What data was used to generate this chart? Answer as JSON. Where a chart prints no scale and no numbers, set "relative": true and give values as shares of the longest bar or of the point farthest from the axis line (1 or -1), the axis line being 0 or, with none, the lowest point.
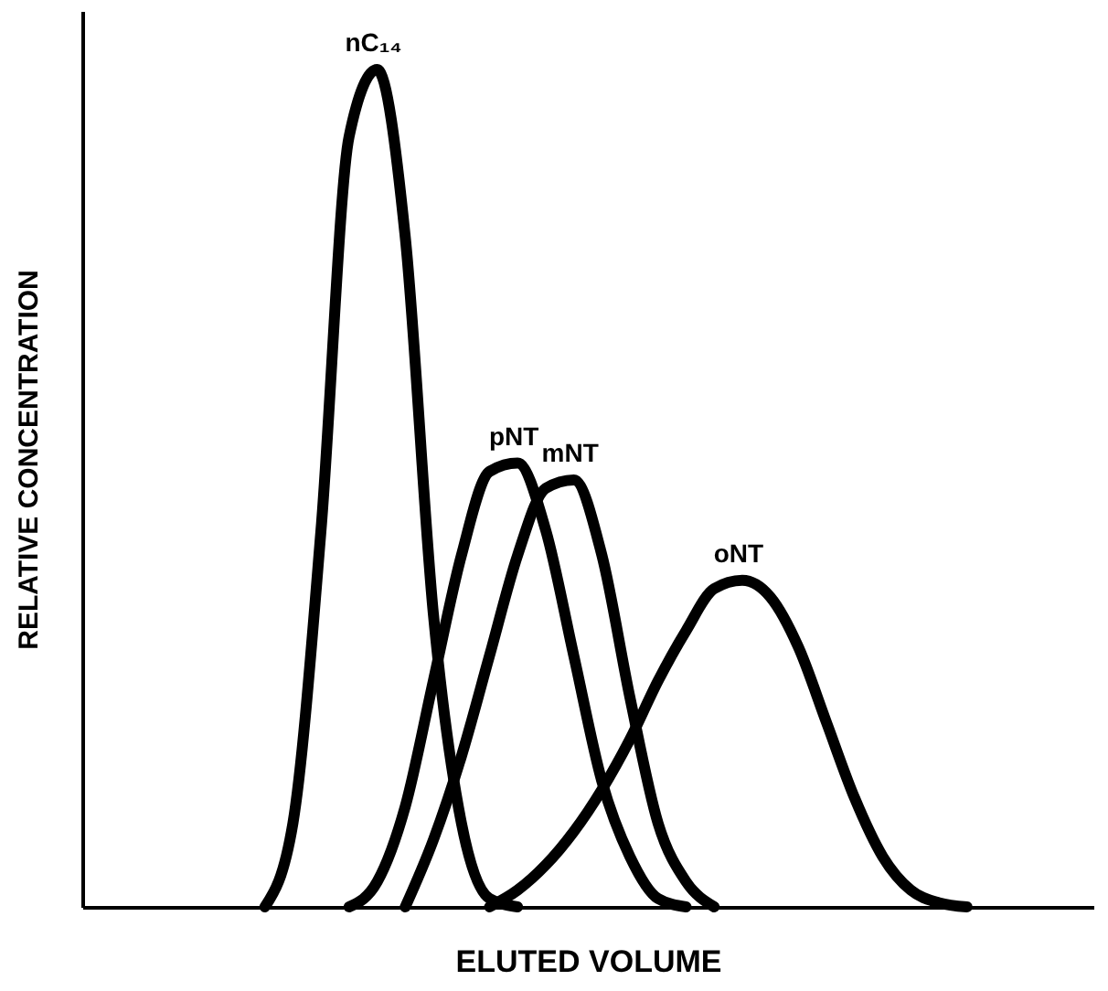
{
  "chart_data": {
    "type": "line",
    "relative": true,
    "xlabel": "ELUTED VOLUME",
    "ylabel": "RELATIVE CONCENTRATION",
    "categories": [
      null,
      null,
      null,
      null,
      null,
      null,
      null,
      null,
      null,
      null,
      null,
      null,
      null,
      null,
      null,
      null,
      null,
      null,
      null,
      null,
      null,
      null,
      null,
      null,
      null,
      null,
      null,
      null,
      null,
      null,
      null,
      null,
      null,
      null,
      null,
      null
    ],
    "series": [
      {
        "name": "nC₁₄",
        "color": "#000000",
        "values": [
          null,
          null,
          null,
          null,
          null,
          null,
          0,
          0.1,
          0.45,
          0.92,
          1.0,
          0.8,
          0.35,
          0.1,
          0.01,
          0,
          null,
          null,
          null,
          null,
          null,
          null,
          null,
          null,
          null,
          null,
          null,
          null,
          null,
          null,
          null,
          null,
          null,
          null,
          null,
          null
        ]
      },
      {
        "name": "pNT",
        "color": "#000000",
        "values": [
          null,
          null,
          null,
          null,
          null,
          null,
          null,
          null,
          null,
          0,
          0.03,
          0.12,
          0.27,
          0.42,
          0.52,
          0.53,
          0.45,
          0.3,
          0.15,
          0.06,
          0.01,
          0,
          null,
          null,
          null,
          null,
          null,
          null,
          null,
          null,
          null,
          null,
          null,
          null,
          null,
          null
        ]
      },
      {
        "name": "mNT",
        "color": "#000000",
        "values": [
          null,
          null,
          null,
          null,
          null,
          null,
          null,
          null,
          null,
          null,
          null,
          0,
          0.08,
          0.18,
          0.3,
          0.42,
          0.5,
          0.51,
          0.42,
          0.25,
          0.1,
          0.03,
          0,
          null,
          null,
          null,
          null,
          null,
          null,
          null,
          null,
          null,
          null,
          null,
          null,
          null
        ]
      },
      {
        "name": "oNT",
        "color": "#000000",
        "values": [
          null,
          null,
          null,
          null,
          null,
          null,
          null,
          null,
          null,
          null,
          null,
          null,
          null,
          null,
          0,
          0.02,
          0.05,
          0.09,
          0.14,
          0.2,
          0.27,
          0.33,
          0.38,
          0.39,
          0.37,
          0.31,
          0.22,
          0.13,
          0.06,
          0.02,
          0.005,
          0,
          null,
          null,
          null,
          null
        ]
      }
    ]
  }
}
